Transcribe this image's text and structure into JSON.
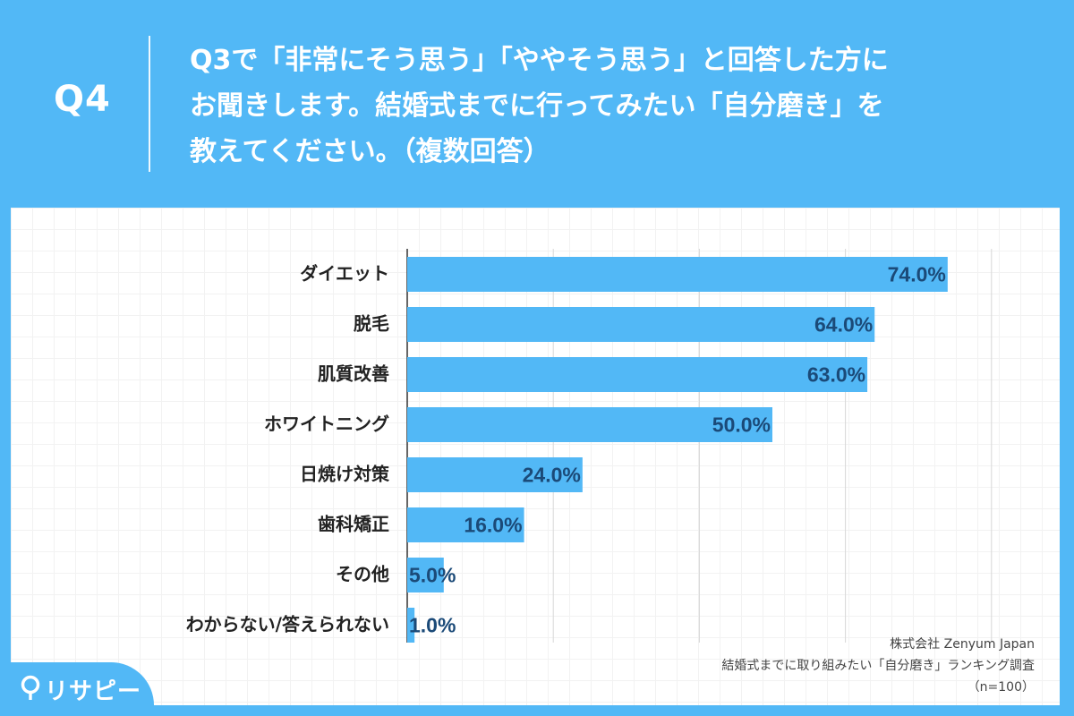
{
  "header": {
    "q_number": "Q4",
    "question_lines": [
      "Q3で「非常にそう思う」「ややそう思う」と回答した方に",
      "お聞きします。結婚式までに行ってみたい「自分磨き」を",
      "教えてください。（複数回答）"
    ]
  },
  "source": {
    "company": "株式会社 Zenyum Japan",
    "survey": "結婚式までに取り組みたい「自分磨き」ランキング調査",
    "sample": "（n=100）"
  },
  "logo": {
    "text": "リサピー",
    "icon": "pin-icon"
  },
  "colors": {
    "background": "#52b8f6",
    "bar": "#52b8f6",
    "value_label": "#1b4a78",
    "grid": "#d7d7d7"
  },
  "chart_data": {
    "type": "bar",
    "orientation": "horizontal",
    "categories": [
      "ダイエット",
      "脱毛",
      "肌質改善",
      "ホワイトニング",
      "日焼け対策",
      "歯科矯正",
      "その他",
      "わからない/答えられない"
    ],
    "values": [
      74.0,
      64.0,
      63.0,
      50.0,
      24.0,
      16.0,
      5.0,
      1.0
    ],
    "value_labels": [
      "74.0%",
      "64.0%",
      "63.0%",
      "50.0%",
      "24.0%",
      "16.0%",
      "5.0%",
      "1.0%"
    ],
    "xlim": [
      0,
      80
    ],
    "grid": true,
    "title": "",
    "xlabel": "",
    "ylabel": ""
  }
}
